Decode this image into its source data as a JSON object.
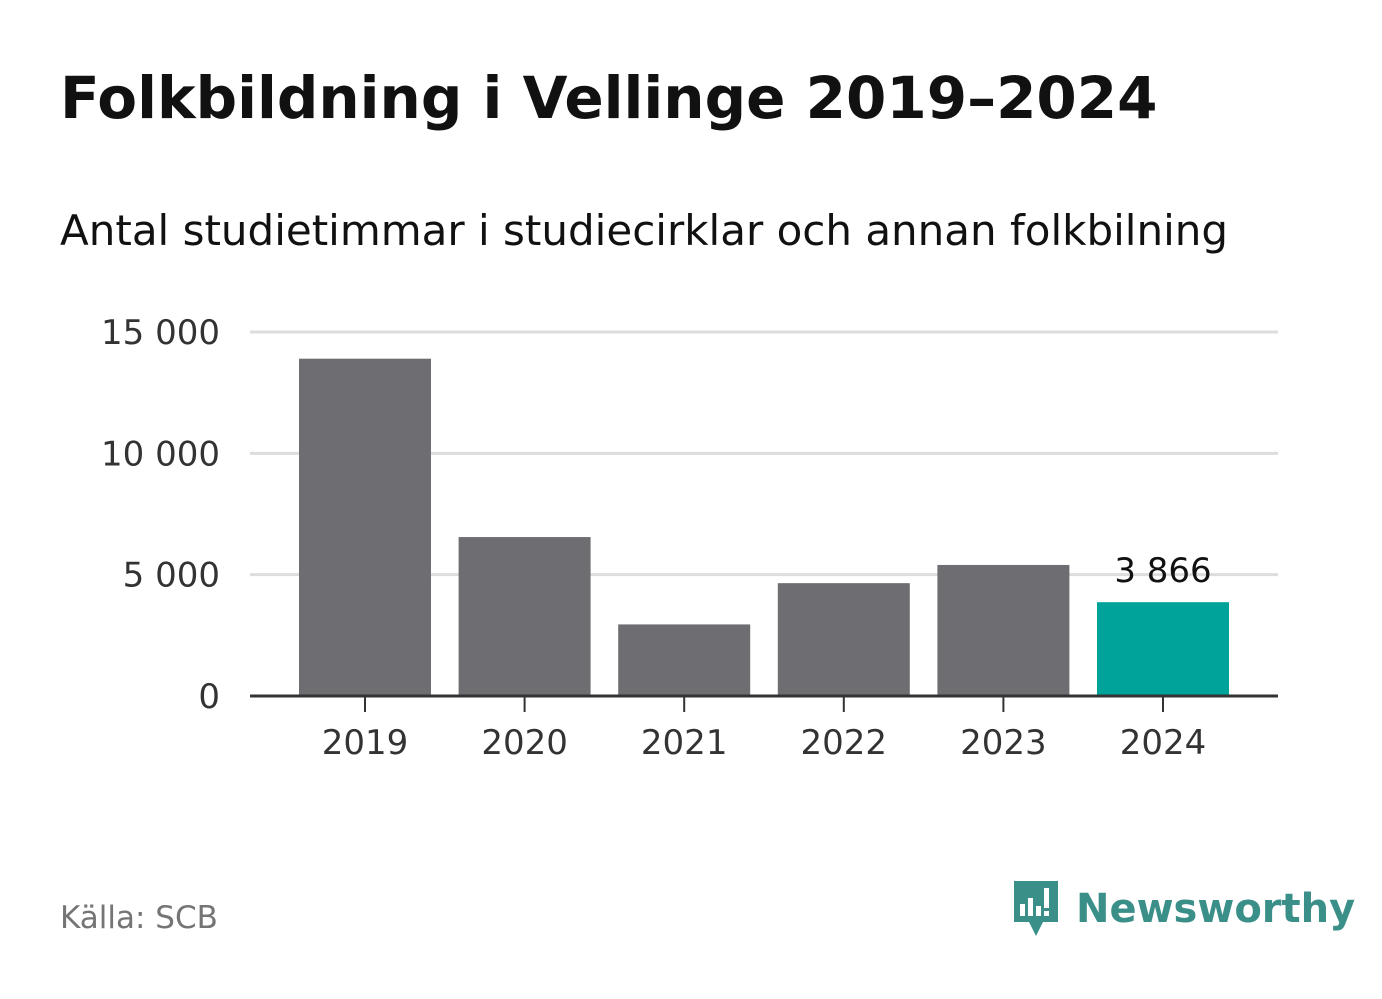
{
  "title": "Folkbildning i Vellinge 2019–2024",
  "subtitle": "Antal studietimmar i studiecirklar och annan folkbilning",
  "source": "Källa: SCB",
  "brand": "Newsworthy",
  "colors": {
    "bar": "#6e6d72",
    "highlight": "#00a39a",
    "grid": "#dddddd",
    "axis": "#333333",
    "brand": "#3a8f88"
  },
  "chart_data": {
    "type": "bar",
    "categories": [
      "2019",
      "2020",
      "2021",
      "2022",
      "2023",
      "2024"
    ],
    "values": [
      13900,
      6550,
      2950,
      4650,
      5400,
      3866
    ],
    "highlight_index": 5,
    "data_labels": [
      {
        "index": 5,
        "text": "3 866"
      }
    ],
    "ylim": [
      0,
      15000
    ],
    "yticks": [
      {
        "value": 0,
        "label": "0"
      },
      {
        "value": 5000,
        "label": "5 000"
      },
      {
        "value": 10000,
        "label": "10 000"
      },
      {
        "value": 15000,
        "label": "15 000"
      }
    ],
    "grid": true,
    "legend": "none",
    "title": "Folkbildning i Vellinge 2019–2024",
    "xlabel": "",
    "ylabel": ""
  }
}
